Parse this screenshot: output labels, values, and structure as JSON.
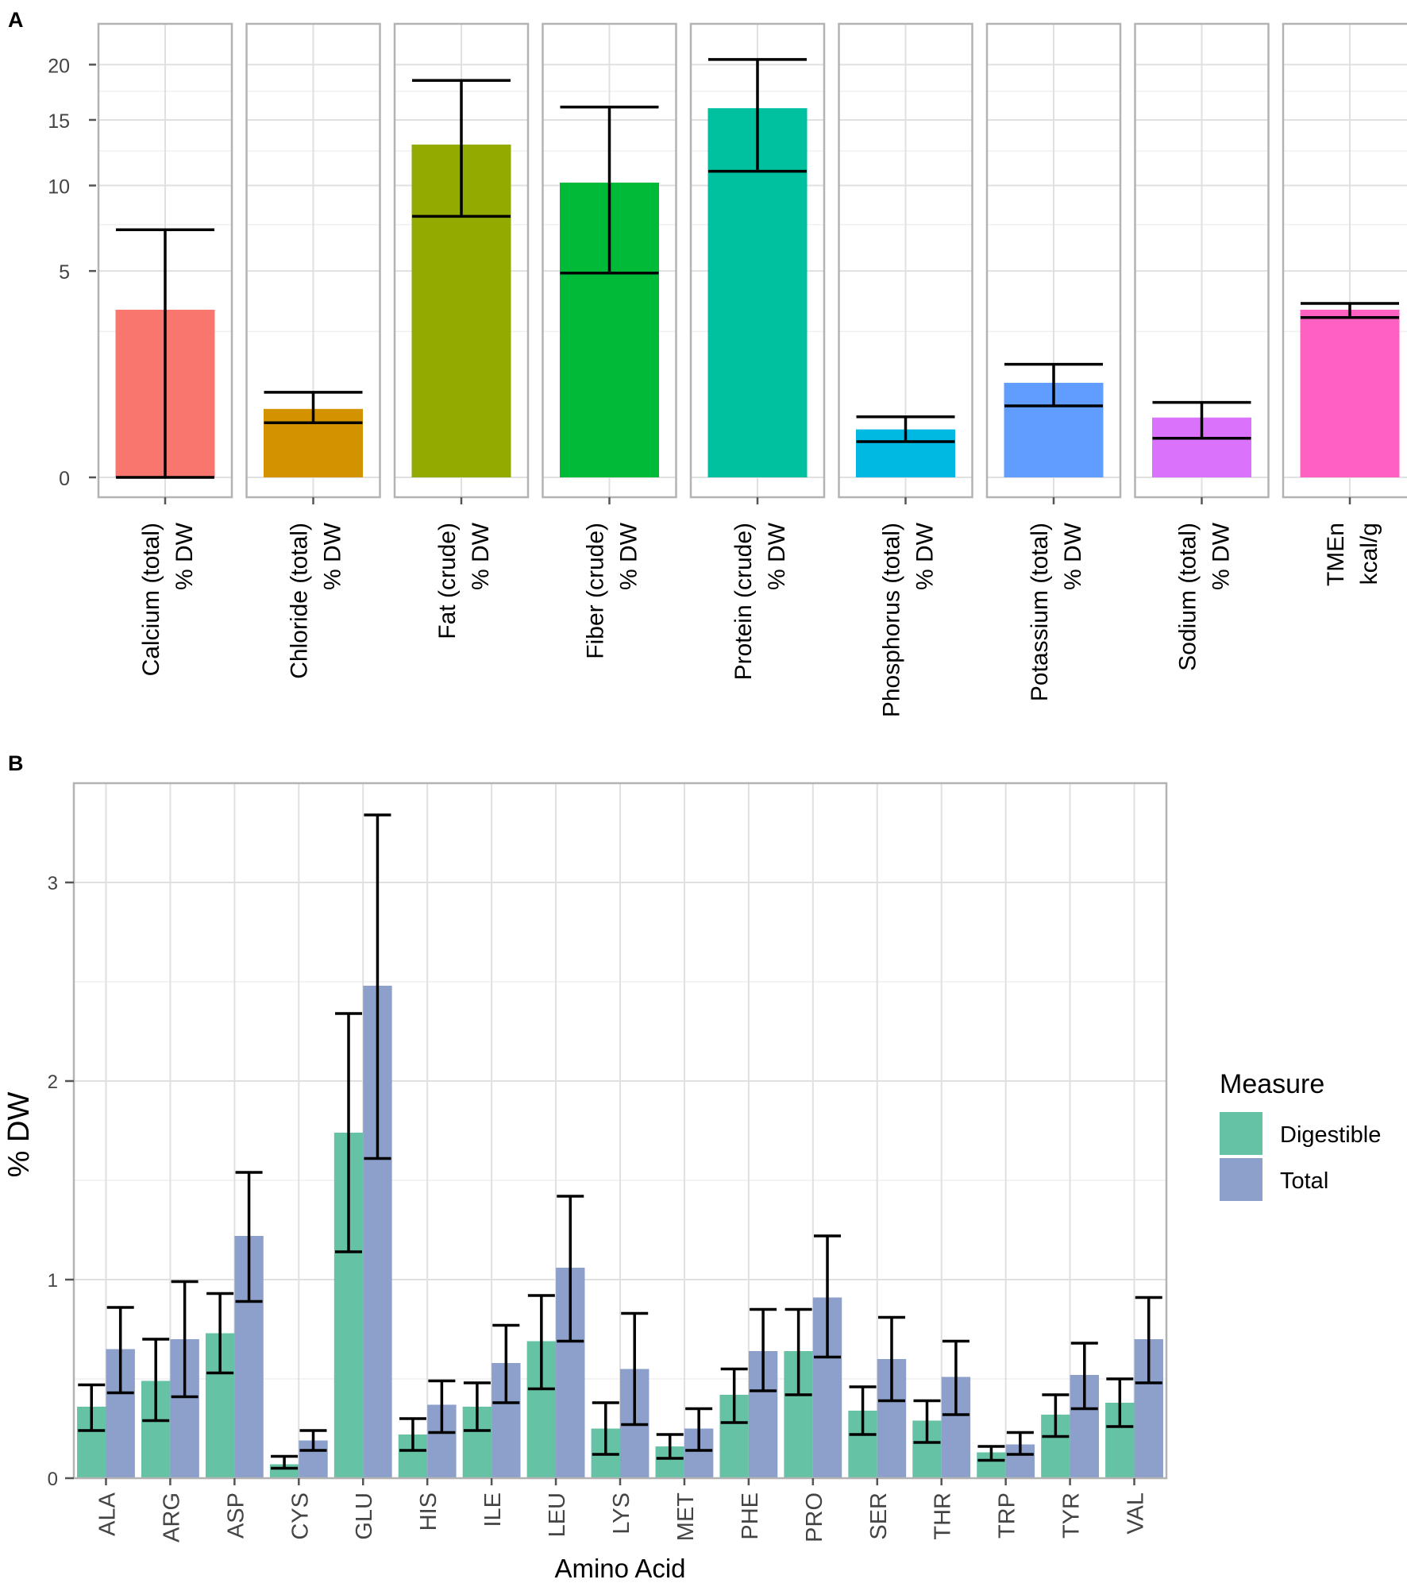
{
  "chart_data": [
    {
      "panel_label": "A",
      "type": "bar",
      "facets": [
        {
          "label_line1": "Calcium (total)",
          "label_line2": "% DW",
          "mean": 3.3,
          "lower": 0.0,
          "upper": 7.2,
          "color": "#F8766D"
        },
        {
          "label_line1": "Chloride (total)",
          "label_line2": "% DW",
          "mean": 0.55,
          "lower": 0.35,
          "upper": 0.85,
          "color": "#D39200"
        },
        {
          "label_line1": "Fat (crude)",
          "label_line2": "% DW",
          "mean": 13.0,
          "lower": 8.0,
          "upper": 18.5,
          "color": "#93AA00"
        },
        {
          "label_line1": "Fiber (crude)",
          "label_line2": "% DW",
          "mean": 10.2,
          "lower": 4.9,
          "upper": 16.1,
          "color": "#00BA38"
        },
        {
          "label_line1": "Protein (crude)",
          "label_line2": "% DW",
          "mean": 16.0,
          "lower": 11.0,
          "upper": 20.5,
          "color": "#00C19F"
        },
        {
          "label_line1": "Phosphorus (total)",
          "label_line2": "% DW",
          "mean": 0.27,
          "lower": 0.15,
          "upper": 0.43,
          "color": "#00B9E3"
        },
        {
          "label_line1": "Potassium (total)",
          "label_line2": "% DW",
          "mean": 1.05,
          "lower": 0.6,
          "upper": 1.5,
          "color": "#619CFF"
        },
        {
          "label_line1": "Sodium (total)",
          "label_line2": "% DW",
          "mean": 0.42,
          "lower": 0.18,
          "upper": 0.66,
          "color": "#DB72FB"
        },
        {
          "label_line1": "TMEn",
          "label_line2": "kcal/g",
          "mean": 3.3,
          "lower": 3.0,
          "upper": 3.55,
          "color": "#FF61C3"
        }
      ],
      "yticks": [
        0,
        5,
        10,
        15,
        20
      ],
      "ylim": [
        0,
        21.5
      ],
      "y_scale": "sqrt"
    },
    {
      "panel_label": "B",
      "type": "bar",
      "xlabel": "Amino Acid",
      "ylabel": "% DW",
      "ylim": [
        0,
        3.5
      ],
      "yticks": [
        0,
        1,
        2,
        3
      ],
      "categories": [
        "ALA",
        "ARG",
        "ASP",
        "CYS",
        "GLU",
        "HIS",
        "ILE",
        "LEU",
        "LYS",
        "MET",
        "PHE",
        "PRO",
        "SER",
        "THR",
        "TRP",
        "TYR",
        "VAL"
      ],
      "series": [
        {
          "name": "Digestible",
          "color": "#66C2A5",
          "values": [
            0.36,
            0.49,
            0.73,
            0.07,
            1.74,
            0.22,
            0.36,
            0.69,
            0.25,
            0.16,
            0.42,
            0.64,
            0.34,
            0.29,
            0.13,
            0.32,
            0.38
          ],
          "lower": [
            0.24,
            0.29,
            0.53,
            0.05,
            1.14,
            0.14,
            0.24,
            0.45,
            0.12,
            0.1,
            0.28,
            0.42,
            0.22,
            0.18,
            0.09,
            0.21,
            0.26
          ],
          "upper": [
            0.47,
            0.7,
            0.93,
            0.11,
            2.34,
            0.3,
            0.48,
            0.92,
            0.38,
            0.22,
            0.55,
            0.85,
            0.46,
            0.39,
            0.16,
            0.42,
            0.5
          ]
        },
        {
          "name": "Total",
          "color": "#8DA0CB",
          "values": [
            0.65,
            0.7,
            1.22,
            0.19,
            2.48,
            0.37,
            0.58,
            1.06,
            0.55,
            0.25,
            0.64,
            0.91,
            0.6,
            0.51,
            0.17,
            0.52,
            0.7
          ],
          "lower": [
            0.43,
            0.41,
            0.89,
            0.14,
            1.61,
            0.23,
            0.38,
            0.69,
            0.27,
            0.14,
            0.44,
            0.61,
            0.39,
            0.32,
            0.12,
            0.35,
            0.48
          ],
          "upper": [
            0.86,
            0.99,
            1.54,
            0.24,
            3.34,
            0.49,
            0.77,
            1.42,
            0.83,
            0.35,
            0.85,
            1.22,
            0.81,
            0.69,
            0.23,
            0.68,
            0.91
          ]
        }
      ],
      "legend": {
        "title": "Measure",
        "entries": [
          "Digestible",
          "Total"
        ],
        "placement": "right"
      }
    }
  ]
}
